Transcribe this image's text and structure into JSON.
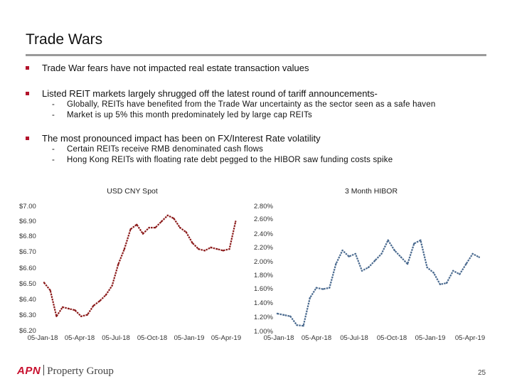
{
  "page": {
    "title": "Trade Wars",
    "bullets": [
      {
        "text": "Trade War fears have not impacted real estate transaction values",
        "subs": []
      },
      {
        "text": "Listed REIT markets largely shrugged off the latest round of tariff announcements-",
        "subs": [
          {
            "dash": "-",
            "text": "Globally, REITs have benefited from the Trade War uncertainty as the sector seen as a safe haven"
          },
          {
            "dash": "-",
            "text": "Market is up 5% this month predominately led by large cap REITs"
          }
        ]
      },
      {
        "text": "The most pronounced impact has been on FX/Interest Rate volatility",
        "subs": [
          {
            "dash": "-",
            "text": "Certain REITs receive RMB denominated cash flows"
          },
          {
            "dash": "-",
            "text": "Hong Kong REITs with floating rate debt pegged to the HIBOR saw funding costs spike"
          }
        ]
      }
    ],
    "logo": {
      "brand": "APN",
      "name": "Property Group"
    },
    "page_number": "25"
  },
  "colors": {
    "accent": "#b3132b",
    "left_series": "#8b1a1a",
    "right_series": "#4a6a8f"
  },
  "chart_data": [
    {
      "type": "line",
      "title": "USD CNY Spot",
      "xlabel": "",
      "ylabel": "",
      "x_ticks": [
        "05-Jan-18",
        "05-Apr-18",
        "05-Jul-18",
        "05-Oct-18",
        "05-Jan-19",
        "05-Apr-19"
      ],
      "y_ticks": [
        "$7.00",
        "$6.90",
        "$6.80",
        "$6.70",
        "$6.60",
        "$6.50",
        "$6.40",
        "$6.30",
        "$6.20"
      ],
      "ylim": [
        6.2,
        7.0
      ],
      "xlim": [
        0,
        16
      ],
      "grid": false,
      "series": [
        {
          "name": "USD CNY Spot",
          "x": [
            0,
            0.5,
            1,
            1.5,
            2,
            2.5,
            3,
            3.5,
            4,
            4.5,
            5,
            5.5,
            6,
            6.5,
            7,
            7.5,
            8,
            8.5,
            9,
            9.5,
            10,
            10.5,
            11,
            11.5,
            12,
            12.5,
            13,
            13.5,
            14,
            14.5,
            15,
            15.5
          ],
          "values": [
            6.5,
            6.45,
            6.28,
            6.34,
            6.33,
            6.32,
            6.28,
            6.29,
            6.35,
            6.38,
            6.42,
            6.48,
            6.62,
            6.72,
            6.85,
            6.88,
            6.82,
            6.86,
            6.86,
            6.9,
            6.94,
            6.92,
            6.86,
            6.83,
            6.76,
            6.72,
            6.71,
            6.73,
            6.72,
            6.71,
            6.72,
            6.9
          ]
        }
      ]
    },
    {
      "type": "line",
      "title": "3 Month HIBOR",
      "xlabel": "",
      "ylabel": "",
      "x_ticks": [
        "05-Jan-18",
        "05-Apr-18",
        "05-Jul-18",
        "05-Oct-18",
        "05-Jan-19",
        "05-Apr-19"
      ],
      "y_ticks": [
        "2.80%",
        "2.60%",
        "2.40%",
        "2.20%",
        "2.00%",
        "1.80%",
        "1.60%",
        "1.40%",
        "1.20%",
        "1.00%"
      ],
      "ylim": [
        1.0,
        2.8
      ],
      "xlim": [
        0,
        16
      ],
      "grid": false,
      "series": [
        {
          "name": "3 Month HIBOR",
          "x": [
            0,
            0.5,
            1,
            1.5,
            2,
            2.5,
            3,
            3.5,
            4,
            4.5,
            5,
            5.5,
            6,
            6.5,
            7,
            7.5,
            8,
            8.5,
            9,
            9.5,
            10,
            10.5,
            11,
            11.5,
            12,
            12.5,
            13,
            13.5,
            14,
            14.5,
            15,
            15.5
          ],
          "values": [
            1.22,
            1.2,
            1.18,
            1.05,
            1.04,
            1.45,
            1.6,
            1.58,
            1.6,
            1.95,
            2.15,
            2.06,
            2.1,
            1.85,
            1.9,
            2.0,
            2.1,
            2.3,
            2.15,
            2.05,
            1.95,
            2.25,
            2.3,
            1.9,
            1.82,
            1.65,
            1.67,
            1.85,
            1.8,
            1.95,
            2.1,
            2.05
          ]
        }
      ]
    }
  ]
}
